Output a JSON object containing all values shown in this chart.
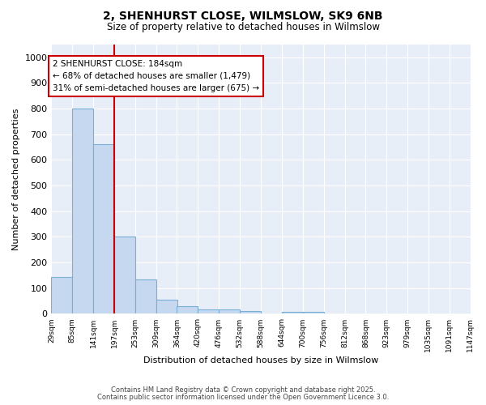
{
  "title_line1": "2, SHENHURST CLOSE, WILMSLOW, SK9 6NB",
  "title_line2": "Size of property relative to detached houses in Wilmslow",
  "xlabel": "Distribution of detached houses by size in Wilmslow",
  "ylabel": "Number of detached properties",
  "bar_left_edges": [
    29,
    85,
    141,
    197,
    253,
    309,
    364,
    420,
    476,
    532,
    588,
    644,
    700,
    756,
    812,
    868,
    923,
    979,
    1035,
    1091
  ],
  "bar_heights": [
    145,
    800,
    660,
    300,
    135,
    55,
    30,
    18,
    18,
    10,
    0,
    8,
    8,
    0,
    0,
    0,
    0,
    0,
    0,
    0
  ],
  "bin_width": 56,
  "tick_labels": [
    "29sqm",
    "85sqm",
    "141sqm",
    "197sqm",
    "253sqm",
    "309sqm",
    "364sqm",
    "420sqm",
    "476sqm",
    "532sqm",
    "588sqm",
    "644sqm",
    "700sqm",
    "756sqm",
    "812sqm",
    "868sqm",
    "923sqm",
    "979sqm",
    "1035sqm",
    "1091sqm",
    "1147sqm"
  ],
  "bar_color": "#C5D8F0",
  "bar_edge_color": "#7AAFD4",
  "vline_x": 197,
  "vline_color": "#CC0000",
  "annotation_text": "2 SHENHURST CLOSE: 184sqm\n← 68% of detached houses are smaller (1,479)\n31% of semi-detached houses are larger (675) →",
  "annotation_box_color": "#CC0000",
  "ylim": [
    0,
    1050
  ],
  "yticks": [
    0,
    100,
    200,
    300,
    400,
    500,
    600,
    700,
    800,
    900,
    1000
  ],
  "background_color": "#FFFFFF",
  "plot_bg_color": "#E8EEF8",
  "grid_color": "#FFFFFF",
  "footnote1": "Contains HM Land Registry data © Crown copyright and database right 2025.",
  "footnote2": "Contains public sector information licensed under the Open Government Licence 3.0."
}
